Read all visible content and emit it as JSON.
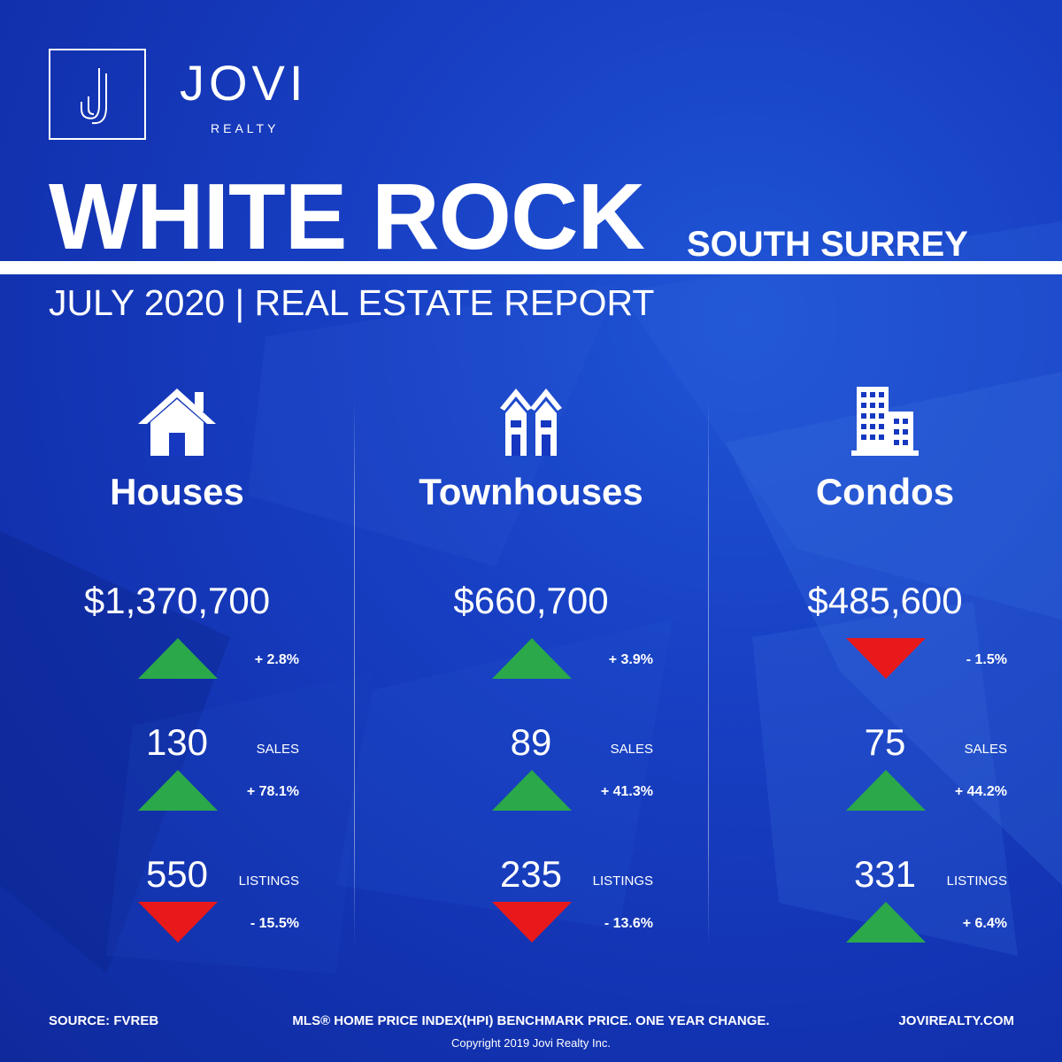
{
  "brand": {
    "name": "JOVI",
    "sub": "REALTY",
    "logo_letter": "J"
  },
  "title": {
    "main": "WHITE ROCK",
    "sub": "SOUTH SURREY",
    "report": "JULY 2020 | REAL ESTATE REPORT"
  },
  "colors": {
    "up": "#2ba84a",
    "down": "#e8191a",
    "background": "#1638c0"
  },
  "columns": [
    {
      "icon": "house-icon",
      "name": "Houses",
      "price": "$1,370,700",
      "price_dir": "up",
      "price_change": "+ 2.8%",
      "sales": "130",
      "sales_label": "SALES",
      "sales_dir": "up",
      "sales_change": "+ 78.1%",
      "listings": "550",
      "listings_label": "LISTINGS",
      "listings_dir": "down",
      "listings_change": "- 15.5%"
    },
    {
      "icon": "townhouse-icon",
      "name": "Townhouses",
      "price": "$660,700",
      "price_dir": "up",
      "price_change": "+ 3.9%",
      "sales": "89",
      "sales_label": "SALES",
      "sales_dir": "up",
      "sales_change": "+ 41.3%",
      "listings": "235",
      "listings_label": "LISTINGS",
      "listings_dir": "down",
      "listings_change": "- 13.6%"
    },
    {
      "icon": "condo-building-icon",
      "name": "Condos",
      "price": "$485,600",
      "price_dir": "down",
      "price_change": "- 1.5%",
      "sales": "75",
      "sales_label": "SALES",
      "sales_dir": "up",
      "sales_change": "+ 44.2%",
      "listings": "331",
      "listings_label": "LISTINGS",
      "listings_dir": "up",
      "listings_change": "+ 6.4%"
    }
  ],
  "footer": {
    "source": "SOURCE:  FVREB",
    "note": "MLS® HOME PRICE INDEX(HPI) BENCHMARK PRICE. ONE YEAR CHANGE.",
    "website": "JOVIREALTY.COM",
    "copyright": "Copyright 2019 Jovi Realty Inc."
  }
}
